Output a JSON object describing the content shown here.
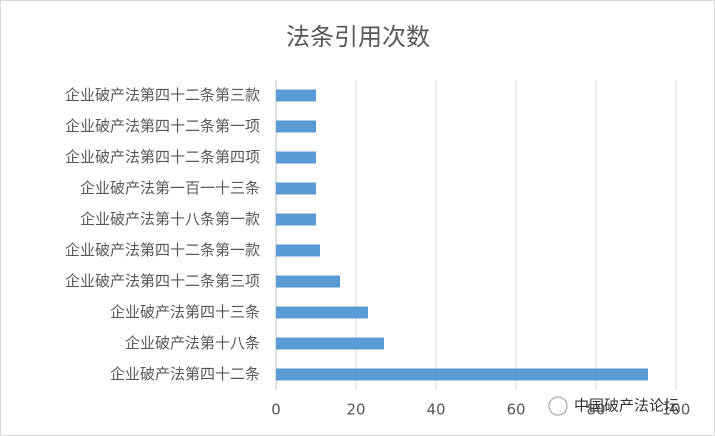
{
  "chart_data": {
    "type": "barh",
    "title": "法条引用次数",
    "categories": [
      "企业破产法第四十二条第三款",
      "企业破产法第四十二条第一项",
      "企业破产法第四十二条第四项",
      "企业破产法第一百一十三条",
      "企业破产法第十八条第一款",
      "企业破产法第四十二条第一款",
      "企业破产法第四十二条第三项",
      "企业破产法第四十三条",
      "企业破产法第十八条",
      "企业破产法第四十二条"
    ],
    "values": [
      10,
      10,
      10,
      10,
      10,
      11,
      16,
      23,
      27,
      93
    ],
    "color": "#5b9bd5",
    "xlim": [
      0,
      100
    ],
    "xticks": [
      0,
      20,
      40,
      60,
      80,
      100
    ],
    "grid": true,
    "watermark": "中国破产法论坛"
  }
}
